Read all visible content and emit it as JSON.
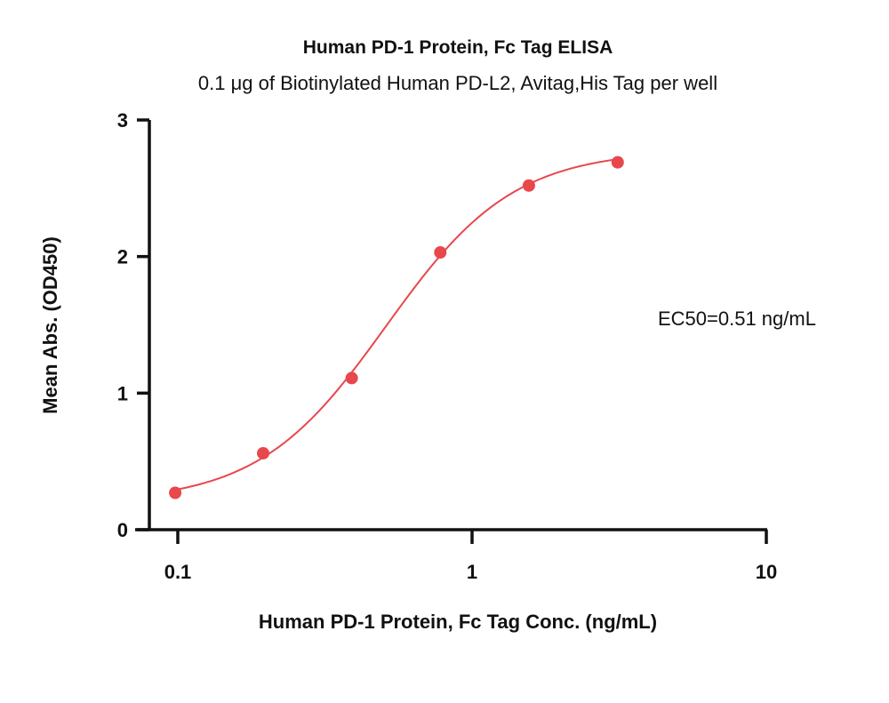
{
  "chart_data": {
    "type": "scatter",
    "title": "Human PD-1 Protein, Fc Tag ELISA",
    "subtitle": "0.1 μg of Biotinylated Human PD-L2, Avitag,His Tag per well",
    "xlabel": "Human PD-1 Protein, Fc Tag Conc. (ng/mL)",
    "ylabel": "Mean Abs. (OD450)",
    "x_scale": "log",
    "xlim": [
      0.1,
      10
    ],
    "ylim": [
      0,
      3
    ],
    "x_ticks": [
      {
        "value": 0.1,
        "label": "0.1"
      },
      {
        "value": 1,
        "label": "1"
      },
      {
        "value": 10,
        "label": "10"
      }
    ],
    "y_ticks": [
      {
        "value": 0,
        "label": "0"
      },
      {
        "value": 1,
        "label": "1"
      },
      {
        "value": 2,
        "label": "2"
      },
      {
        "value": 3,
        "label": "3"
      }
    ],
    "grid": false,
    "series": [
      {
        "x": [
          0.098,
          0.195,
          0.39,
          0.78,
          1.56,
          3.125
        ],
        "y": [
          0.27,
          0.56,
          1.11,
          2.03,
          2.52,
          2.69
        ],
        "color": "#e8474c",
        "fit": "4PL"
      }
    ],
    "fit_params": {
      "bottom": 0.2,
      "top": 2.78,
      "ec50": 0.51,
      "hill": 2.0
    },
    "annotation": "EC50=0.51 ng/mL"
  }
}
